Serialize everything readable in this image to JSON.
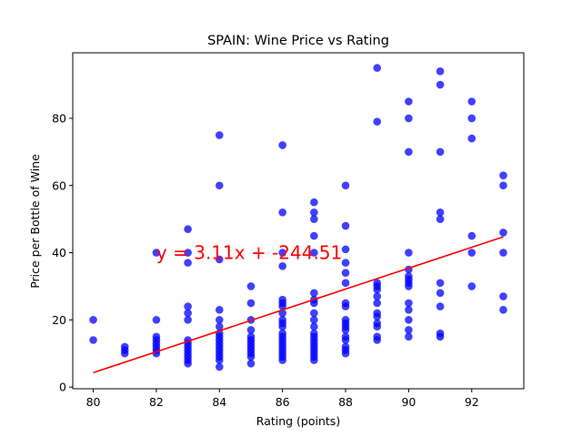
{
  "chart_data": {
    "type": "scatter",
    "title": "SPAIN: Wine Price vs Rating",
    "xlabel": "Rating (points)",
    "ylabel": "Price per Bottle of Wine",
    "xlim": [
      79.35,
      93.65
    ],
    "ylim": [
      -0.5,
      99.5
    ],
    "xticks": [
      80,
      82,
      84,
      86,
      88,
      90,
      92
    ],
    "yticks": [
      0,
      20,
      40,
      60,
      80
    ],
    "grid": false,
    "point_color": "#0000ff",
    "line_color": "#ff0000",
    "regression": {
      "slope": 3.11,
      "intercept": -244.51,
      "x_range": [
        80,
        93
      ]
    },
    "annotation": {
      "text": "y = 3.11x + -244.51",
      "x": 82,
      "y": 40,
      "color": "#ff0000"
    },
    "points": [
      [
        80,
        20
      ],
      [
        80,
        14
      ],
      [
        81,
        12
      ],
      [
        81,
        11
      ],
      [
        81,
        10
      ],
      [
        82,
        40
      ],
      [
        82,
        20
      ],
      [
        82,
        15
      ],
      [
        82,
        14
      ],
      [
        82,
        13
      ],
      [
        82,
        12
      ],
      [
        82,
        11
      ],
      [
        82,
        10
      ],
      [
        83,
        47
      ],
      [
        83,
        40
      ],
      [
        83,
        37
      ],
      [
        83,
        24
      ],
      [
        83,
        22
      ],
      [
        83,
        20
      ],
      [
        83,
        14
      ],
      [
        83,
        13
      ],
      [
        83,
        12
      ],
      [
        83,
        11
      ],
      [
        83,
        10
      ],
      [
        83,
        9
      ],
      [
        83,
        8
      ],
      [
        83,
        7
      ],
      [
        84,
        75
      ],
      [
        84,
        60
      ],
      [
        84,
        38
      ],
      [
        84,
        23
      ],
      [
        84,
        20
      ],
      [
        84,
        18
      ],
      [
        84,
        16
      ],
      [
        84,
        15
      ],
      [
        84,
        14
      ],
      [
        84,
        13
      ],
      [
        84,
        12
      ],
      [
        84,
        11
      ],
      [
        84,
        10
      ],
      [
        84,
        9
      ],
      [
        84,
        8
      ],
      [
        84,
        6
      ],
      [
        85,
        30
      ],
      [
        85,
        25
      ],
      [
        85,
        20
      ],
      [
        85,
        17
      ],
      [
        85,
        15
      ],
      [
        85,
        14
      ],
      [
        85,
        13
      ],
      [
        85,
        12
      ],
      [
        85,
        11
      ],
      [
        85,
        10
      ],
      [
        85,
        9
      ],
      [
        85,
        7
      ],
      [
        86,
        72
      ],
      [
        86,
        52
      ],
      [
        86,
        40
      ],
      [
        86,
        36
      ],
      [
        86,
        26
      ],
      [
        86,
        25
      ],
      [
        86,
        24
      ],
      [
        86,
        22
      ],
      [
        86,
        20
      ],
      [
        86,
        19
      ],
      [
        86,
        18
      ],
      [
        86,
        16
      ],
      [
        86,
        15
      ],
      [
        86,
        14
      ],
      [
        86,
        13
      ],
      [
        86,
        12
      ],
      [
        86,
        11
      ],
      [
        86,
        10
      ],
      [
        86,
        9
      ],
      [
        86,
        8
      ],
      [
        87,
        55
      ],
      [
        87,
        52
      ],
      [
        87,
        50
      ],
      [
        87,
        45
      ],
      [
        87,
        40
      ],
      [
        87,
        28
      ],
      [
        87,
        26
      ],
      [
        87,
        25
      ],
      [
        87,
        22
      ],
      [
        87,
        20
      ],
      [
        87,
        18
      ],
      [
        87,
        16
      ],
      [
        87,
        15
      ],
      [
        87,
        14
      ],
      [
        87,
        13
      ],
      [
        87,
        12
      ],
      [
        87,
        11
      ],
      [
        87,
        10
      ],
      [
        87,
        9
      ],
      [
        87,
        8
      ],
      [
        88,
        60
      ],
      [
        88,
        48
      ],
      [
        88,
        41
      ],
      [
        88,
        37
      ],
      [
        88,
        34
      ],
      [
        88,
        31
      ],
      [
        88,
        25
      ],
      [
        88,
        24
      ],
      [
        88,
        20
      ],
      [
        88,
        19
      ],
      [
        88,
        18
      ],
      [
        88,
        17
      ],
      [
        88,
        15
      ],
      [
        88,
        14
      ],
      [
        88,
        12
      ],
      [
        88,
        11
      ],
      [
        88,
        10
      ],
      [
        89,
        95
      ],
      [
        89,
        79
      ],
      [
        89,
        31
      ],
      [
        89,
        30
      ],
      [
        89,
        29
      ],
      [
        89,
        27
      ],
      [
        89,
        25
      ],
      [
        89,
        22
      ],
      [
        89,
        21
      ],
      [
        89,
        19
      ],
      [
        89,
        18
      ],
      [
        89,
        15
      ],
      [
        89,
        14
      ],
      [
        90,
        85
      ],
      [
        90,
        80
      ],
      [
        90,
        70
      ],
      [
        90,
        40
      ],
      [
        90,
        35
      ],
      [
        90,
        33
      ],
      [
        90,
        32
      ],
      [
        90,
        31
      ],
      [
        90,
        30
      ],
      [
        90,
        25
      ],
      [
        90,
        23
      ],
      [
        90,
        20
      ],
      [
        90,
        17
      ],
      [
        90,
        15
      ],
      [
        91,
        94
      ],
      [
        91,
        90
      ],
      [
        91,
        70
      ],
      [
        91,
        52
      ],
      [
        91,
        50
      ],
      [
        91,
        31
      ],
      [
        91,
        28
      ],
      [
        91,
        24
      ],
      [
        91,
        16
      ],
      [
        91,
        15
      ],
      [
        92,
        85
      ],
      [
        92,
        80
      ],
      [
        92,
        74
      ],
      [
        92,
        45
      ],
      [
        92,
        40
      ],
      [
        92,
        30
      ],
      [
        93,
        63
      ],
      [
        93,
        60
      ],
      [
        93,
        46
      ],
      [
        93,
        40
      ],
      [
        93,
        27
      ],
      [
        93,
        23
      ]
    ]
  }
}
